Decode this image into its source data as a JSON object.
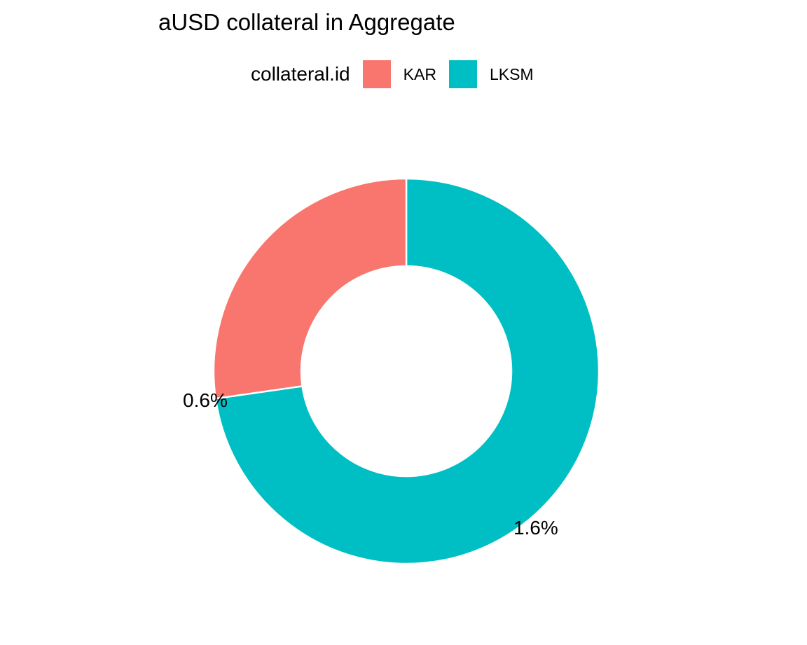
{
  "chart_data": {
    "type": "pie",
    "variant": "donut",
    "title": "aUSD collateral in Aggregate",
    "legend_title": "collateral.id",
    "legend_position": "top",
    "categories": [
      "KAR",
      "LKSM"
    ],
    "values": [
      0.6,
      1.6
    ],
    "labels": [
      "0.6%",
      "1.6%"
    ],
    "colors": [
      "#F8766D",
      "#00BFC4"
    ],
    "grid": false
  }
}
